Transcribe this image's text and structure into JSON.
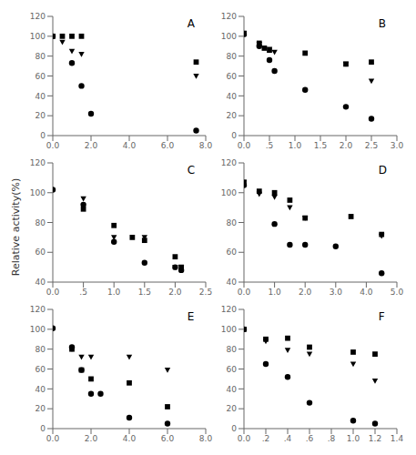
{
  "chart_data": [
    {
      "type": "scatter",
      "title": "A",
      "xlim": [
        0.0,
        8.0
      ],
      "ylim": [
        0,
        120
      ],
      "xticks": [
        {
          "value": 0,
          "label": "0.0"
        },
        {
          "value": 2,
          "label": "2.0"
        },
        {
          "value": 4,
          "label": "4.0"
        },
        {
          "value": 6,
          "label": "6.0"
        },
        {
          "value": 8,
          "label": "8.0"
        }
      ],
      "yticks": [
        0,
        20,
        40,
        60,
        80,
        100,
        120
      ],
      "grid": false,
      "series": [
        {
          "marker": "circle",
          "color": "black",
          "x": [
            0.0,
            1.0,
            1.5,
            2.0,
            7.5
          ],
          "values": [
            100,
            73,
            50,
            22,
            5
          ]
        },
        {
          "marker": "square",
          "color": "black",
          "x": [
            0.0,
            0.5,
            1.0,
            1.5,
            7.5
          ],
          "values": [
            100,
            100,
            100,
            100,
            74
          ]
        },
        {
          "marker": "triangle-down",
          "color": "black",
          "x": [
            0.0,
            0.5,
            1.0,
            1.5,
            7.5
          ],
          "values": [
            100,
            94,
            85,
            82,
            60
          ]
        }
      ]
    },
    {
      "type": "scatter",
      "title": "B",
      "xlim": [
        0.0,
        3.0
      ],
      "ylim": [
        0,
        120
      ],
      "xticks": [
        {
          "value": 0,
          "label": "0.0"
        },
        {
          "value": 0.5,
          "label": ".5"
        },
        {
          "value": 1,
          "label": "1.0"
        },
        {
          "value": 1.5,
          "label": "1.5"
        },
        {
          "value": 2,
          "label": "2.0"
        },
        {
          "value": 2.5,
          "label": "2.5"
        },
        {
          "value": 3,
          "label": "3.0"
        }
      ],
      "yticks": [
        0,
        20,
        40,
        60,
        80,
        100,
        120
      ],
      "grid": false,
      "series": [
        {
          "marker": "circle",
          "color": "black",
          "x": [
            0.0,
            0.3,
            0.5,
            0.6,
            1.2,
            2.0,
            2.5
          ],
          "values": [
            102,
            90,
            76,
            65,
            46,
            29,
            17
          ]
        },
        {
          "marker": "square",
          "color": "black",
          "x": [
            0.0,
            0.3,
            0.4,
            0.5,
            1.2,
            2.0,
            2.5
          ],
          "values": [
            103,
            93,
            88,
            86,
            83,
            72,
            74
          ]
        },
        {
          "marker": "triangle-down",
          "color": "black",
          "x": [
            0.0,
            0.3,
            0.5,
            0.6,
            2.0,
            2.5
          ],
          "values": [
            103,
            92,
            87,
            84,
            72,
            55
          ]
        }
      ]
    },
    {
      "type": "scatter",
      "title": "C",
      "xlim": [
        0.0,
        2.5
      ],
      "ylim": [
        40,
        120
      ],
      "xticks": [
        {
          "value": 0,
          "label": "0.0"
        },
        {
          "value": 0.5,
          "label": ".5"
        },
        {
          "value": 1,
          "label": "1.0"
        },
        {
          "value": 1.5,
          "label": "1.5"
        },
        {
          "value": 2,
          "label": "2.0"
        },
        {
          "value": 2.5,
          "label": "2.5"
        }
      ],
      "yticks": [
        40,
        60,
        80,
        100,
        120
      ],
      "grid": false,
      "series": [
        {
          "marker": "circle",
          "color": "black",
          "x": [
            0.0,
            0.5,
            1.0,
            1.5,
            2.0,
            2.1
          ],
          "values": [
            102,
            92,
            67,
            53,
            50,
            48
          ]
        },
        {
          "marker": "square",
          "color": "black",
          "x": [
            0.5,
            1.0,
            1.3,
            1.5,
            2.0,
            2.1
          ],
          "values": [
            89,
            78,
            70,
            68,
            57,
            50
          ]
        },
        {
          "marker": "triangle-down",
          "color": "black",
          "x": [
            0.5,
            1.0,
            1.5,
            2.0,
            2.1
          ],
          "values": [
            96,
            70,
            70,
            50,
            50
          ]
        }
      ]
    },
    {
      "type": "scatter",
      "title": "D",
      "xlim": [
        0.0,
        5.0
      ],
      "ylim": [
        40,
        120
      ],
      "xticks": [
        {
          "value": 0,
          "label": "0.0"
        },
        {
          "value": 1,
          "label": "1.0"
        },
        {
          "value": 2,
          "label": "2.0"
        },
        {
          "value": 3,
          "label": "3.0"
        },
        {
          "value": 4,
          "label": "4.0"
        },
        {
          "value": 5,
          "label": "5.0"
        }
      ],
      "yticks": [
        40,
        60,
        80,
        100,
        120
      ],
      "grid": false,
      "series": [
        {
          "marker": "circle",
          "color": "black",
          "x": [
            0.0,
            1.0,
            1.5,
            2.0,
            3.0,
            4.5
          ],
          "values": [
            105,
            79,
            65,
            65,
            64,
            46
          ]
        },
        {
          "marker": "square",
          "color": "black",
          "x": [
            0.0,
            0.5,
            1.0,
            1.5,
            2.0,
            3.5,
            4.5
          ],
          "values": [
            107,
            101,
            100,
            95,
            83,
            84,
            72
          ]
        },
        {
          "marker": "triangle-down",
          "color": "black",
          "x": [
            0.0,
            0.5,
            1.0,
            1.5,
            2.0,
            4.5
          ],
          "values": [
            107,
            99,
            97,
            90,
            83,
            71
          ]
        }
      ]
    },
    {
      "type": "scatter",
      "title": "E",
      "xlim": [
        0.0,
        8.0
      ],
      "ylim": [
        0,
        120
      ],
      "xticks": [
        {
          "value": 0,
          "label": "0.0"
        },
        {
          "value": 2,
          "label": "2.0"
        },
        {
          "value": 4,
          "label": "4.0"
        },
        {
          "value": 6,
          "label": "6.0"
        },
        {
          "value": 8,
          "label": "8.0"
        }
      ],
      "yticks": [
        0,
        20,
        40,
        60,
        80,
        100,
        120
      ],
      "grid": false,
      "series": [
        {
          "marker": "circle",
          "color": "black",
          "x": [
            0.0,
            1.0,
            1.5,
            2.0,
            2.5,
            4.0,
            6.0
          ],
          "values": [
            101,
            82,
            59,
            35,
            35,
            11,
            5
          ]
        },
        {
          "marker": "square",
          "color": "black",
          "x": [
            1.0,
            1.5,
            2.0,
            4.0,
            6.0
          ],
          "values": [
            80,
            59,
            50,
            46,
            22
          ]
        },
        {
          "marker": "triangle-down",
          "color": "black",
          "x": [
            1.0,
            1.5,
            2.0,
            4.0,
            6.0
          ],
          "values": [
            80,
            72,
            72,
            72,
            59
          ]
        }
      ]
    },
    {
      "type": "scatter",
      "title": "F",
      "xlim": [
        0.0,
        1.4
      ],
      "ylim": [
        0,
        120
      ],
      "xticks": [
        {
          "value": 0,
          "label": "0.0"
        },
        {
          "value": 0.2,
          "label": ".2"
        },
        {
          "value": 0.4,
          "label": ".4"
        },
        {
          "value": 0.6,
          "label": ".6"
        },
        {
          "value": 0.8,
          "label": ".8"
        },
        {
          "value": 1,
          "label": "1.0"
        },
        {
          "value": 1.2,
          "label": "1.2"
        },
        {
          "value": 1.4,
          "label": "1.4"
        }
      ],
      "yticks": [
        0,
        20,
        40,
        60,
        80,
        100,
        120
      ],
      "grid": false,
      "series": [
        {
          "marker": "circle",
          "color": "black",
          "x": [
            0.0,
            0.2,
            0.4,
            0.6,
            1.0,
            1.2
          ],
          "values": [
            100,
            65,
            52,
            26,
            8,
            5
          ]
        },
        {
          "marker": "square",
          "color": "black",
          "x": [
            0.0,
            0.2,
            0.4,
            0.6,
            1.0,
            1.2
          ],
          "values": [
            100,
            90,
            91,
            82,
            77,
            75
          ]
        },
        {
          "marker": "triangle-down",
          "color": "black",
          "x": [
            0.2,
            0.4,
            0.6,
            1.0,
            1.2
          ],
          "values": [
            88,
            79,
            75,
            65,
            48
          ]
        }
      ]
    }
  ],
  "ylabel": "Relative activity(%)"
}
